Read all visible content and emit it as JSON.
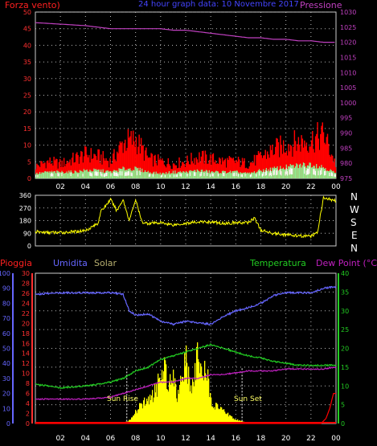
{
  "header": {
    "forza_label": "Forza vento)",
    "date_title": "24 hour graph data: 10 Novembre 2017",
    "pressione_label": "Pressione"
  },
  "lower_header": {
    "pioggia": "Pioggia",
    "umidita": "Umidita",
    "solar": "Solar",
    "temperatura": "Temperatura",
    "dewpoint": "Dew Point (°C)"
  },
  "wind_dir_letters": [
    "N",
    "W",
    "S",
    "E",
    "N"
  ],
  "annotations": {
    "sunrise": "Sun Rise",
    "sunset": "Sun Set"
  },
  "colors": {
    "wind_avg": "#ff0000",
    "wind_gust": "#ffffff",
    "wind_fill": "#90ee90",
    "pressure": "#c040c0",
    "direction": "#ffff00",
    "humidity": "#6666ff",
    "temperature": "#22cc22",
    "dewpoint": "#c020c0",
    "rain": "#ff0000",
    "solar": "#ffff00"
  },
  "chart_data": [
    {
      "type": "area",
      "id": "wind-pressure",
      "x_ticks": [
        "02",
        "04",
        "06",
        "08",
        "10",
        "12",
        "14",
        "16",
        "18",
        "20",
        "22",
        "00"
      ],
      "y_left_ticks": [
        0,
        5,
        10,
        15,
        20,
        25,
        30,
        35,
        40,
        45,
        50
      ],
      "y_right_ticks": [
        975,
        980,
        985,
        990,
        995,
        1000,
        1005,
        1010,
        1015,
        1020,
        1025,
        1030
      ],
      "ylim_left": [
        0,
        50
      ],
      "ylim_right": [
        975,
        1030
      ],
      "series": [
        {
          "name": "Pressione",
          "axis": "right",
          "x": [
            0,
            2,
            4,
            5,
            6,
            7,
            8,
            9,
            10,
            11,
            12,
            13,
            14,
            15,
            16,
            17,
            18,
            19,
            20,
            21,
            22,
            23,
            24
          ],
          "values": [
            1026.5,
            1026,
            1025.5,
            1025,
            1024.5,
            1024.5,
            1024.5,
            1024.5,
            1024.5,
            1024,
            1024,
            1023.5,
            1023,
            1022.5,
            1022,
            1021.5,
            1021.5,
            1021,
            1021,
            1020.5,
            1020.5,
            1020,
            1020
          ]
        }
      ],
      "wind_avg_approx": {
        "x": [
          0,
          1,
          2,
          3,
          4,
          5,
          6,
          7,
          8,
          9,
          10,
          11,
          12,
          13,
          14,
          15,
          16,
          17,
          18,
          19,
          20,
          21,
          22,
          23,
          24
        ],
        "values": [
          3,
          4,
          4,
          4,
          5,
          5,
          4,
          6,
          6,
          4,
          3,
          4,
          4,
          5,
          4,
          4,
          4,
          3,
          5,
          6,
          7,
          8,
          9,
          7,
          3
        ]
      },
      "wind_gust_approx": {
        "x": [
          0,
          1,
          2,
          3,
          4,
          5,
          6,
          7,
          8,
          9,
          10,
          11,
          12,
          13,
          14,
          15,
          16,
          17,
          18,
          19,
          20,
          21,
          22,
          23,
          24
        ],
        "values": [
          5,
          7,
          6,
          8,
          10,
          9,
          7,
          15,
          16,
          8,
          7,
          6,
          7,
          9,
          8,
          7,
          7,
          6,
          9,
          12,
          14,
          15,
          16,
          18,
          5
        ]
      }
    },
    {
      "type": "line",
      "id": "wind-direction",
      "y_ticks": [
        0,
        90,
        180,
        270,
        360
      ],
      "ylim": [
        0,
        360
      ],
      "series": [
        {
          "name": "",
          "x": [
            0,
            1,
            2,
            3,
            4,
            5,
            5.2,
            6,
            6.5,
            7,
            7.5,
            8,
            8.5,
            9,
            10,
            11,
            12,
            13,
            14,
            15,
            16,
            17,
            17.5,
            18,
            19,
            20,
            21,
            22,
            22.5,
            23,
            24
          ],
          "values": [
            100,
            95,
            95,
            100,
            110,
            160,
            240,
            330,
            250,
            330,
            180,
            330,
            170,
            160,
            165,
            150,
            160,
            170,
            170,
            160,
            165,
            165,
            200,
            110,
            90,
            80,
            70,
            70,
            90,
            340,
            320
          ]
        }
      ]
    },
    {
      "type": "line",
      "id": "temp-humidity-rain-solar",
      "y_rain_ticks": [
        0,
        2,
        4,
        6,
        8,
        10,
        12,
        14,
        16,
        18,
        20,
        22,
        24,
        26,
        28,
        30
      ],
      "y_hum_ticks": [
        0,
        10,
        20,
        30,
        40,
        50,
        60,
        70,
        80,
        90,
        100
      ],
      "y_temp_ticks": [
        0,
        5,
        10,
        15,
        20,
        25,
        30,
        35,
        40
      ],
      "series": [
        {
          "name": "Umidita",
          "axis": "humidity",
          "x": [
            0,
            2,
            4,
            6,
            7,
            7.5,
            8,
            9,
            10,
            11,
            12,
            13,
            14,
            15,
            16,
            17,
            18,
            19,
            20,
            21,
            22,
            23,
            24
          ],
          "values": [
            86,
            87,
            87,
            87,
            86,
            75,
            72,
            73,
            68,
            66,
            68,
            67,
            66,
            71,
            75,
            77,
            80,
            85,
            87,
            87,
            87,
            90,
            91
          ]
        },
        {
          "name": "Temperatura",
          "axis": "temp",
          "x": [
            0,
            2,
            4,
            6,
            7,
            8,
            9,
            10,
            11,
            12,
            13,
            14,
            15,
            16,
            17,
            18,
            19,
            20,
            21,
            22,
            23,
            24
          ],
          "values": [
            10.5,
            9.5,
            10,
            11,
            12,
            14,
            15,
            17,
            18,
            19,
            20,
            21,
            20,
            19,
            18,
            17.5,
            16.5,
            16,
            15.5,
            15.5,
            15.5,
            15.5
          ]
        },
        {
          "name": "Dew Point (°C)",
          "axis": "temp",
          "x": [
            0,
            2,
            4,
            6,
            7,
            8,
            9,
            10,
            11,
            12,
            13,
            14,
            15,
            16,
            17,
            18,
            19,
            20,
            21,
            22,
            23,
            24
          ],
          "values": [
            6.5,
            6.5,
            6.5,
            7,
            8,
            9,
            10,
            11,
            11,
            12,
            12,
            13,
            13,
            13.5,
            14,
            14,
            14,
            14.5,
            14.5,
            14.5,
            14.5,
            15
          ]
        },
        {
          "name": "Pioggia",
          "axis": "rain",
          "x": [
            0,
            22.8,
            23.2,
            23.5,
            23.8,
            24
          ],
          "values": [
            0,
            0,
            1,
            3,
            6,
            6
          ]
        },
        {
          "name": "Solar",
          "axis": "rain",
          "x": [
            0,
            7,
            7.5,
            8,
            8.5,
            9,
            9.5,
            10,
            10.3,
            10.6,
            11,
            11.3,
            11.6,
            12,
            12.3,
            12.6,
            13,
            13.3,
            13.6,
            14,
            14.5,
            15,
            15.5,
            16,
            17,
            24
          ],
          "values": [
            0,
            0,
            1,
            3,
            5,
            6,
            8,
            12,
            15,
            10,
            14,
            7,
            12,
            16,
            9,
            12,
            18,
            11,
            14,
            6,
            4,
            3,
            2,
            1,
            0,
            0
          ]
        }
      ]
    }
  ]
}
